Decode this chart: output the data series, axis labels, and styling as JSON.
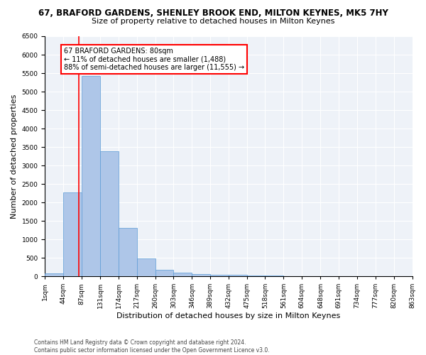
{
  "title": "67, BRAFORD GARDENS, SHENLEY BROOK END, MILTON KEYNES, MK5 7HY",
  "subtitle": "Size of property relative to detached houses in Milton Keynes",
  "xlabel": "Distribution of detached houses by size in Milton Keynes",
  "ylabel": "Number of detached properties",
  "footnote1": "Contains HM Land Registry data © Crown copyright and database right 2024.",
  "footnote2": "Contains public sector information licensed under the Open Government Licence v3.0.",
  "bin_edges": [
    1,
    44,
    87,
    131,
    174,
    217,
    260,
    303,
    346,
    389,
    432,
    475,
    518,
    561,
    604,
    648,
    691,
    734,
    777,
    820,
    863
  ],
  "bar_heights": [
    75,
    2270,
    5430,
    3380,
    1310,
    480,
    165,
    95,
    65,
    40,
    35,
    25,
    15,
    10,
    8,
    6,
    4,
    3,
    2,
    2
  ],
  "bar_color": "#aec6e8",
  "bar_edge_color": "#5b9bd5",
  "property_size": 80,
  "property_line_color": "red",
  "annotation_text": "67 BRAFORD GARDENS: 80sqm\n← 11% of detached houses are smaller (1,488)\n88% of semi-detached houses are larger (11,555) →",
  "annotation_box_color": "white",
  "annotation_box_edge_color": "red",
  "ylim": [
    0,
    6500
  ],
  "yticks": [
    0,
    500,
    1000,
    1500,
    2000,
    2500,
    3000,
    3500,
    4000,
    4500,
    5000,
    5500,
    6000,
    6500
  ],
  "background_color": "#eef2f8",
  "grid_color": "white",
  "title_fontsize": 8.5,
  "subtitle_fontsize": 8,
  "axis_label_fontsize": 8,
  "tick_fontsize": 6.5,
  "footnote_fontsize": 5.5
}
